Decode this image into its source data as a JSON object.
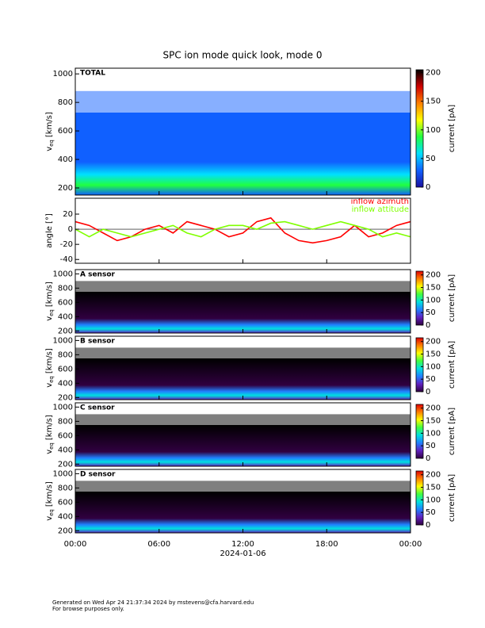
{
  "chart_data": [
    {
      "type": "heatmap",
      "title": "SPC ion mode quick look, mode 0",
      "label": "TOTAL",
      "ylabel": {
        "symbol": "v",
        "subscript": "eq",
        "unit": "[km/s]"
      },
      "ylim": [
        150,
        1040
      ],
      "yticks": [
        200,
        400,
        600,
        800,
        1000
      ],
      "colorbar": {
        "label": "current [pA]",
        "lim": [
          0,
          205
        ],
        "ticks": [
          0,
          50,
          100,
          150,
          200
        ],
        "colors": [
          "#1a10a0",
          "#1060ff",
          "#00e0ff",
          "#20ff40",
          "#ffff00",
          "#ff8000",
          "#d00000",
          "#000000"
        ]
      }
    },
    {
      "type": "line",
      "ylabel": "angle [°]",
      "ylim": [
        -45,
        41
      ],
      "yticks": [
        -40,
        -20,
        0,
        20
      ],
      "x": [
        0,
        1,
        2,
        3,
        4,
        5,
        6,
        7,
        8,
        9,
        10,
        11,
        12,
        13,
        14,
        15,
        16,
        17,
        18,
        19,
        20,
        21,
        22,
        23,
        24
      ],
      "series": [
        {
          "name": "inflow azimuth",
          "color": "#ff0000",
          "values": [
            10,
            5,
            -5,
            -15,
            -10,
            0,
            5,
            -5,
            10,
            5,
            0,
            -10,
            -5,
            10,
            15,
            -5,
            -15,
            -18,
            -15,
            -10,
            5,
            -10,
            -5,
            5,
            10
          ]
        },
        {
          "name": "inflow attitude",
          "color": "#80ff00",
          "values": [
            0,
            -10,
            0,
            -5,
            -10,
            -5,
            0,
            5,
            -5,
            -10,
            0,
            5,
            5,
            0,
            8,
            10,
            5,
            0,
            5,
            10,
            5,
            0,
            -10,
            -5,
            -10
          ]
        }
      ]
    },
    {
      "type": "heatmap",
      "label": "A sensor",
      "ylabel": {
        "symbol": "v",
        "subscript": "eq",
        "unit": "[km/s]"
      },
      "ylim": [
        170,
        1060
      ],
      "yticks": [
        200,
        400,
        600,
        800,
        1000
      ],
      "colorbar": {
        "label": "current [pA]",
        "lim": [
          0,
          215
        ],
        "ticks": [
          0,
          50,
          100,
          150,
          200
        ],
        "colors": [
          "#300040",
          "#6020c0",
          "#2080ff",
          "#00e0e0",
          "#40ff40",
          "#ffff00",
          "#ff8000",
          "#e00000"
        ]
      }
    },
    {
      "type": "heatmap",
      "label": "B sensor",
      "ylabel": {
        "symbol": "v",
        "subscript": "eq",
        "unit": "[km/s]"
      },
      "ylim": [
        170,
        1060
      ],
      "yticks": [
        200,
        400,
        600,
        800,
        1000
      ],
      "colorbar": {
        "label": "current [pA]",
        "lim": [
          0,
          215
        ],
        "ticks": [
          0,
          50,
          100,
          150,
          200
        ],
        "colors": [
          "#300040",
          "#6020c0",
          "#2080ff",
          "#00e0e0",
          "#40ff40",
          "#ffff00",
          "#ff8000",
          "#e00000"
        ]
      }
    },
    {
      "type": "heatmap",
      "label": "C sensor",
      "ylabel": {
        "symbol": "v",
        "subscript": "eq",
        "unit": "[km/s]"
      },
      "ylim": [
        170,
        1060
      ],
      "yticks": [
        200,
        400,
        600,
        800,
        1000
      ],
      "colorbar": {
        "label": "current [pA]",
        "lim": [
          0,
          215
        ],
        "ticks": [
          0,
          50,
          100,
          150,
          200
        ],
        "colors": [
          "#300040",
          "#6020c0",
          "#2080ff",
          "#00e0e0",
          "#40ff40",
          "#ffff00",
          "#ff8000",
          "#e00000"
        ]
      }
    },
    {
      "type": "heatmap",
      "label": "D sensor",
      "ylabel": {
        "symbol": "v",
        "subscript": "eq",
        "unit": "[km/s]"
      },
      "ylim": [
        170,
        1060
      ],
      "yticks": [
        200,
        400,
        600,
        800,
        1000
      ],
      "colorbar": {
        "label": "current [pA]",
        "lim": [
          0,
          215
        ],
        "ticks": [
          0,
          50,
          100,
          150,
          200
        ],
        "colors": [
          "#300040",
          "#6020c0",
          "#2080ff",
          "#00e0e0",
          "#40ff40",
          "#ffff00",
          "#ff8000",
          "#e00000"
        ]
      }
    }
  ],
  "x_axis": {
    "xlim": [
      0,
      24
    ],
    "xticks": [
      {
        "value": 0,
        "label": "00:00"
      },
      {
        "value": 6,
        "label": "06:00"
      },
      {
        "value": 12,
        "label": "12:00"
      },
      {
        "value": 18,
        "label": "18:00"
      },
      {
        "value": 24,
        "label": "00:00"
      }
    ],
    "xlabel": "2024-01-06"
  },
  "footer": [
    "Generated on Wed Apr 24 21:37:34 2024 by mstevens@cfa.harvard.edu",
    "For browse purposes only."
  ]
}
